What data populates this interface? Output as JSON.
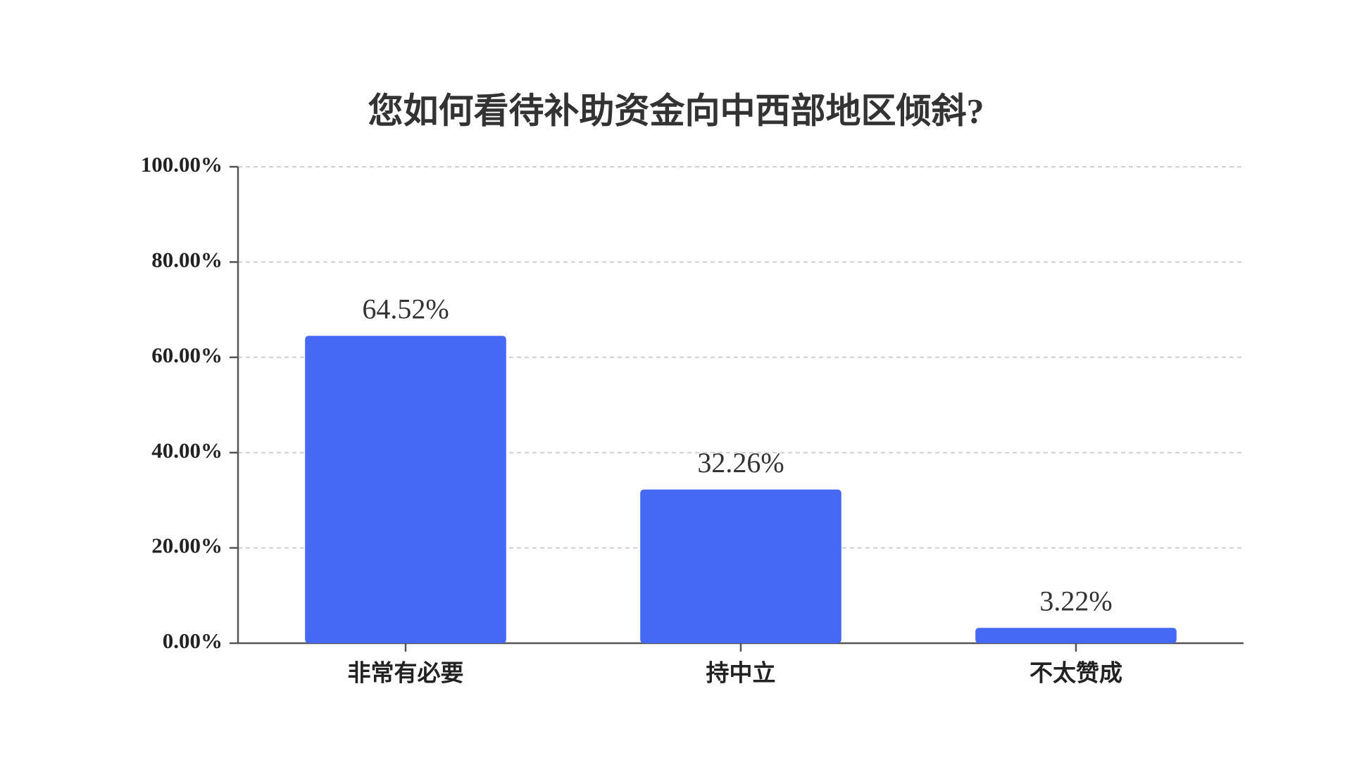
{
  "chart_data": {
    "type": "bar",
    "title": "您如何看待补助资金向中西部地区倾斜?",
    "categories": [
      "非常有必要",
      "持中立",
      "不太赞成"
    ],
    "values": [
      64.52,
      32.26,
      3.22
    ],
    "value_labels": [
      "64.52%",
      "32.26%",
      "3.22%"
    ],
    "color": "#4569f5",
    "ylim": [
      0,
      100
    ],
    "yticks": [
      {
        "value": 0,
        "label": "0.00%"
      },
      {
        "value": 20,
        "label": "20.00%"
      },
      {
        "value": 40,
        "label": "40.00%"
      },
      {
        "value": 60,
        "label": "60.00%"
      },
      {
        "value": 80,
        "label": "80.00%"
      },
      {
        "value": 100,
        "label": "100.00%"
      }
    ],
    "grid": true
  }
}
